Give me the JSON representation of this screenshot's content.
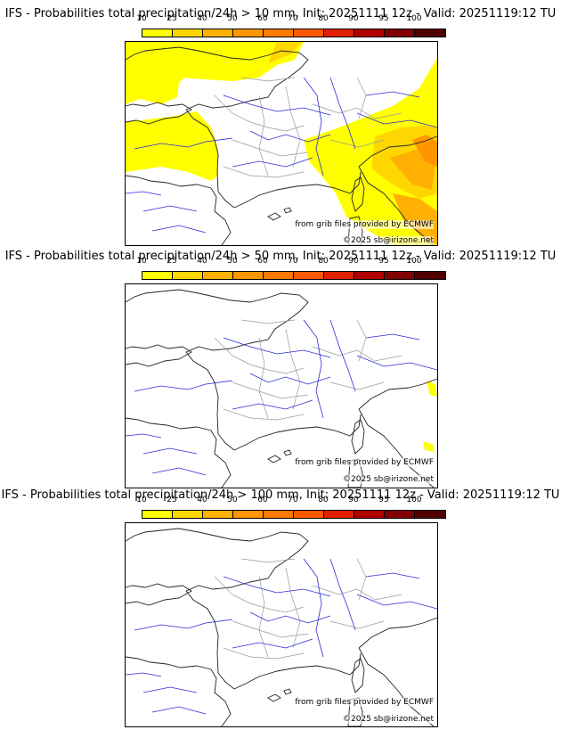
{
  "colorbar": {
    "labels": [
      "10",
      "25",
      "40",
      "50",
      "60",
      "70",
      "80",
      "90",
      "95",
      "100"
    ],
    "colors": [
      "#ffff00",
      "#ffd700",
      "#ffb000",
      "#ff9500",
      "#ff7a00",
      "#ff5a00",
      "#e02000",
      "#b00000",
      "#800000",
      "#500000"
    ]
  },
  "panels": [
    {
      "title": "IFS - Probabilities total precipitation/24h > 10 mm, Init: 20251111 12z - Valid: 20251119:12 TU",
      "source_text": "from grib files provided by ECMWF",
      "copyright_text": "©2025 sb@irizone.net",
      "field": "high"
    },
    {
      "title": "IFS - Probabilities total precipitation/24h > 50 mm, Init: 20251111 12z - Valid: 20251119:12 TU",
      "source_text": "from grib files provided by ECMWF",
      "copyright_text": "©2025 sb@irizone.net",
      "field": "low"
    },
    {
      "title": "IFS - Probabilities total precipitation/24h > 100 mm, Init: 20251111 12z - Valid: 20251119:12 TU",
      "source_text": "from grib files provided by ECMWF",
      "copyright_text": "©2025 sb@irizone.net",
      "field": "none"
    }
  ]
}
